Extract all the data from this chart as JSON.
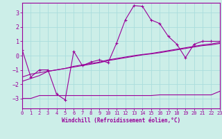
{
  "xlabel": "Windchill (Refroidissement éolien,°C)",
  "bg_color": "#cceee8",
  "grid_color": "#aadddd",
  "line_color": "#990099",
  "x_values": [
    0,
    1,
    2,
    3,
    4,
    5,
    6,
    7,
    8,
    9,
    10,
    11,
    12,
    13,
    14,
    15,
    16,
    17,
    18,
    19,
    20,
    21,
    22,
    23
  ],
  "line1": [
    0.4,
    -1.5,
    -1.0,
    -1.0,
    -2.7,
    -3.1,
    0.3,
    -0.7,
    -0.45,
    -0.3,
    -0.5,
    0.9,
    2.5,
    3.5,
    3.45,
    2.5,
    2.25,
    1.35,
    0.8,
    -0.15,
    0.8,
    1.0,
    1.0,
    1.0
  ],
  "line2": [
    -3.0,
    -3.0,
    -2.8,
    -2.8,
    -2.8,
    -2.8,
    -2.8,
    -2.8,
    -2.8,
    -2.8,
    -2.8,
    -2.8,
    -2.8,
    -2.8,
    -2.8,
    -2.8,
    -2.75,
    -2.75,
    -2.75,
    -2.75,
    -2.75,
    -2.75,
    -2.75,
    -2.5
  ],
  "line3": [
    -1.8,
    -1.6,
    -1.4,
    -1.1,
    -1.0,
    -0.9,
    -0.8,
    -0.7,
    -0.6,
    -0.5,
    -0.35,
    -0.25,
    -0.15,
    -0.05,
    0.05,
    0.12,
    0.2,
    0.3,
    0.4,
    0.5,
    0.6,
    0.7,
    0.75,
    0.85
  ],
  "line4": [
    -1.5,
    -1.3,
    -1.2,
    -1.1,
    -1.0,
    -0.9,
    -0.75,
    -0.65,
    -0.55,
    -0.45,
    -0.3,
    -0.2,
    -0.1,
    0.0,
    0.08,
    0.15,
    0.25,
    0.35,
    0.45,
    0.55,
    0.65,
    0.75,
    0.82,
    0.92
  ],
  "ylim": [
    -3.7,
    3.7
  ],
  "xlim": [
    0,
    23
  ],
  "yticks": [
    -3,
    -2,
    -1,
    0,
    1,
    2,
    3
  ],
  "xticks": [
    0,
    1,
    2,
    3,
    4,
    5,
    6,
    7,
    8,
    9,
    10,
    11,
    12,
    13,
    14,
    15,
    16,
    17,
    18,
    19,
    20,
    21,
    22,
    23
  ]
}
